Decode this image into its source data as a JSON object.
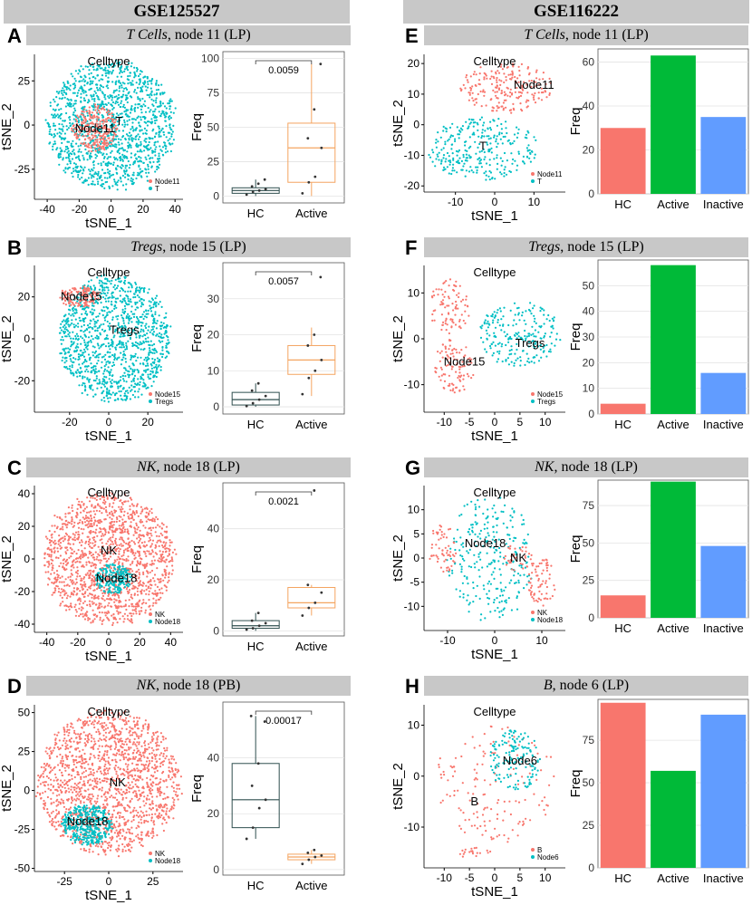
{
  "titles": {
    "left": "GSE125527",
    "right": "GSE116222"
  },
  "colors": {
    "pink": "#f8766d",
    "cyan": "#00bfc4",
    "hc": "#f8766d",
    "active": "#00ba38",
    "inactive": "#619cff",
    "box_hc": "#2f4f4f",
    "box_active": "#f4a460",
    "banner": "#c8c8c8",
    "grid": "#e3e3e3"
  },
  "panels": [
    {
      "letter": "A",
      "banner_italic": "T Cells",
      "banner_rest": ", node 11 (LP)"
    },
    {
      "letter": "B",
      "banner_italic": "Tregs",
      "banner_rest": ", node 15 (LP)"
    },
    {
      "letter": "C",
      "banner_italic": "NK",
      "banner_rest": ", node 18 (LP)"
    },
    {
      "letter": "D",
      "banner_italic": "NK",
      "banner_rest": ", node 18 (PB)"
    },
    {
      "letter": "E",
      "banner_italic": "T Cells",
      "banner_rest": ", node 11 (LP)"
    },
    {
      "letter": "F",
      "banner_italic": "Tregs",
      "banner_rest": ", node 15 (LP)"
    },
    {
      "letter": "G",
      "banner_italic": "NK",
      "banner_rest": ", node 18 (LP)"
    },
    {
      "letter": "H",
      "banner_italic": "B",
      "banner_rest": ", node 6 (LP)"
    }
  ],
  "chart_data": [
    {
      "id": "A-tsne",
      "type": "scatter",
      "title": "Celltype",
      "xlabel": "tSNE_1",
      "ylabel": "tSNE_2",
      "xlim": [
        -48,
        45
      ],
      "ylim": [
        -42,
        40
      ],
      "xticks": [
        -40,
        -20,
        0,
        20,
        40
      ],
      "yticks": [
        -25,
        0,
        25
      ],
      "labels": [
        {
          "text": "Node11",
          "x": -10,
          "y": -2
        },
        {
          "text": "T",
          "x": 5,
          "y": 2
        }
      ],
      "legend": [
        "Node11",
        "T"
      ],
      "clusters": [
        {
          "group": "cyan",
          "cx": 0,
          "cy": 0,
          "rx": 40,
          "ry": 36,
          "n": 1400,
          "seed": 11
        },
        {
          "group": "pink",
          "cx": -10,
          "cy": -2,
          "rx": 14,
          "ry": 13,
          "n": 260,
          "seed": 12
        }
      ]
    },
    {
      "id": "A-box",
      "type": "box",
      "ylabel": "Freq",
      "categories": [
        "HC",
        "Active"
      ],
      "ylim": [
        -5,
        105
      ],
      "yticks": [
        0,
        25,
        50,
        75,
        100
      ],
      "pvalue": "0.0059",
      "boxes": [
        {
          "q1": 2,
          "median": 4,
          "q3": 6,
          "lo": 0,
          "hi": 12,
          "points": [
            1,
            3,
            4,
            5,
            7,
            9,
            12
          ]
        },
        {
          "q1": 10,
          "median": 35,
          "q3": 53,
          "lo": 0,
          "hi": 96,
          "points": [
            2,
            10,
            14,
            35,
            42,
            63,
            96
          ]
        }
      ]
    },
    {
      "id": "B-tsne",
      "type": "scatter",
      "title": "Celltype",
      "xlabel": "tSNE_1",
      "ylabel": "tSNE_2",
      "xlim": [
        -38,
        38
      ],
      "ylim": [
        -35,
        35
      ],
      "xticks": [
        -20,
        0,
        20
      ],
      "yticks": [
        -20,
        0,
        20
      ],
      "labels": [
        {
          "text": "Node15",
          "x": -14,
          "y": 20
        },
        {
          "text": "Tregs",
          "x": 8,
          "y": 4
        }
      ],
      "legend": [
        "Node15",
        "Tregs"
      ],
      "clusters": [
        {
          "group": "cyan",
          "cx": 3,
          "cy": 0,
          "rx": 28,
          "ry": 30,
          "n": 1200,
          "seed": 21
        },
        {
          "group": "pink",
          "cx": -15,
          "cy": 20,
          "rx": 10,
          "ry": 5,
          "n": 120,
          "seed": 22
        }
      ]
    },
    {
      "id": "B-box",
      "type": "box",
      "ylabel": "Freq",
      "categories": [
        "HC",
        "Active"
      ],
      "ylim": [
        -2,
        40
      ],
      "yticks": [
        0,
        10,
        20,
        30
      ],
      "pvalue": "0.0057",
      "boxes": [
        {
          "q1": 0.5,
          "median": 2,
          "q3": 4,
          "lo": 0,
          "hi": 6.5,
          "points": [
            0.2,
            1,
            2,
            3,
            4.5,
            6.5
          ]
        },
        {
          "q1": 9,
          "median": 13,
          "q3": 17,
          "lo": 3,
          "hi": 22,
          "points": [
            3.5,
            8,
            10,
            13,
            17,
            20,
            36
          ]
        }
      ]
    },
    {
      "id": "C-tsne",
      "type": "scatter",
      "title": "Celltype",
      "xlabel": "tSNE_1",
      "ylabel": "tSNE_2",
      "xlim": [
        -48,
        48
      ],
      "ylim": [
        -45,
        45
      ],
      "xticks": [
        -40,
        -20,
        0,
        20,
        40
      ],
      "yticks": [
        -40,
        -20,
        0,
        20,
        40
      ],
      "labels": [
        {
          "text": "NK",
          "x": 0,
          "y": 5
        },
        {
          "text": "Node18",
          "x": 5,
          "y": -12
        }
      ],
      "legend": [
        "NK",
        "Node18"
      ],
      "clusters": [
        {
          "group": "pink",
          "cx": 0,
          "cy": 0,
          "rx": 42,
          "ry": 40,
          "n": 1500,
          "seed": 31
        },
        {
          "group": "cyan",
          "cx": 3,
          "cy": -12,
          "rx": 12,
          "ry": 9,
          "n": 200,
          "seed": 32
        }
      ]
    },
    {
      "id": "C-box",
      "type": "box",
      "ylabel": "Freq",
      "categories": [
        "HC",
        "Active"
      ],
      "ylim": [
        -2,
        58
      ],
      "yticks": [
        0,
        20,
        40
      ],
      "pvalue": "0.0021",
      "boxes": [
        {
          "q1": 1,
          "median": 2,
          "q3": 4,
          "lo": 0,
          "hi": 7,
          "points": [
            0.5,
            1,
            2,
            3,
            4,
            7
          ]
        },
        {
          "q1": 9,
          "median": 11,
          "q3": 17,
          "lo": 6,
          "hi": 18,
          "points": [
            6,
            9,
            11,
            15,
            18,
            55
          ]
        }
      ]
    },
    {
      "id": "D-tsne",
      "type": "scatter",
      "title": "Celltype",
      "xlabel": "tSNE_1",
      "ylabel": "tSNE_2",
      "xlim": [
        -42,
        42
      ],
      "ylim": [
        -52,
        55
      ],
      "xticks": [
        -25,
        0,
        25
      ],
      "yticks": [
        -50,
        -25,
        0,
        25,
        50
      ],
      "labels": [
        {
          "text": "NK",
          "x": 5,
          "y": 5
        },
        {
          "text": "Node18",
          "x": -12,
          "y": -20
        }
      ],
      "legend": [
        "NK",
        "Node18"
      ],
      "clusters": [
        {
          "group": "pink",
          "cx": 0,
          "cy": 5,
          "rx": 40,
          "ry": 46,
          "n": 1600,
          "seed": 41
        },
        {
          "group": "cyan",
          "cx": -12,
          "cy": -22,
          "rx": 14,
          "ry": 13,
          "n": 380,
          "seed": 42
        }
      ]
    },
    {
      "id": "D-box",
      "type": "box",
      "ylabel": "Freq",
      "categories": [
        "HC",
        "Active"
      ],
      "ylim": [
        -2,
        60
      ],
      "yticks": [
        0,
        20,
        40
      ],
      "pvalue": "0.00017",
      "boxes": [
        {
          "q1": 15,
          "median": 25,
          "q3": 38,
          "lo": 11,
          "hi": 55,
          "points": [
            11,
            15,
            22,
            25,
            30,
            38,
            53,
            55
          ]
        },
        {
          "q1": 3.5,
          "median": 4.5,
          "q3": 5.5,
          "lo": 2,
          "hi": 7,
          "points": [
            2,
            3.5,
            4.5,
            5,
            6,
            7
          ]
        }
      ]
    },
    {
      "id": "E-tsne",
      "type": "scatter",
      "title": "Celltype",
      "xlabel": "tSNE_1",
      "ylabel": "tSNE_2",
      "xlim": [
        -18,
        18
      ],
      "ylim": [
        -22,
        23
      ],
      "xticks": [
        -10,
        0,
        10
      ],
      "yticks": [
        -20,
        -10,
        0,
        10,
        20
      ],
      "labels": [
        {
          "text": "Node11",
          "x": 10,
          "y": 13
        },
        {
          "text": "T",
          "x": -3,
          "y": -7
        }
      ],
      "legend": [
        "Node11",
        "T"
      ],
      "clusters": [
        {
          "group": "pink",
          "cx": 3,
          "cy": 12,
          "rx": 12,
          "ry": 8,
          "n": 210,
          "seed": 51
        },
        {
          "group": "cyan",
          "cx": -3,
          "cy": -8,
          "rx": 14,
          "ry": 10,
          "n": 290,
          "seed": 52
        }
      ]
    },
    {
      "id": "E-bar",
      "type": "bar",
      "ylabel": "Freq",
      "categories": [
        "HC",
        "Active",
        "Inactive"
      ],
      "values": [
        30,
        63,
        35
      ],
      "ylim": [
        0,
        66
      ],
      "yticks": [
        0,
        20,
        40,
        60
      ]
    },
    {
      "id": "F-tsne",
      "type": "scatter",
      "title": "Celltype",
      "xlabel": "tSNE_1",
      "ylabel": "tSNE_2",
      "xlim": [
        -14,
        14
      ],
      "ylim": [
        -16,
        16
      ],
      "xticks": [
        -10,
        -5,
        0,
        5,
        10
      ],
      "yticks": [
        -10,
        0,
        10
      ],
      "labels": [
        {
          "text": "Node15",
          "x": -6,
          "y": -5
        },
        {
          "text": "Tregs",
          "x": 7,
          "y": -1
        }
      ],
      "legend": [
        "Node15",
        "Tregs"
      ],
      "clusters": [
        {
          "group": "pink",
          "cx": -9,
          "cy": 7,
          "rx": 4,
          "ry": 6,
          "n": 90,
          "seed": 61
        },
        {
          "group": "pink",
          "cx": -8,
          "cy": -6,
          "rx": 4,
          "ry": 6,
          "n": 100,
          "seed": 62
        },
        {
          "group": "cyan",
          "cx": 5,
          "cy": 1,
          "rx": 8,
          "ry": 7,
          "n": 220,
          "seed": 63
        }
      ]
    },
    {
      "id": "F-bar",
      "type": "bar",
      "ylabel": "Freq",
      "categories": [
        "HC",
        "Active",
        "Inactive"
      ],
      "values": [
        4,
        58,
        16
      ],
      "ylim": [
        0,
        60
      ],
      "yticks": [
        0,
        10,
        20,
        30,
        40,
        50
      ]
    },
    {
      "id": "G-tsne",
      "type": "scatter",
      "title": "Celltype",
      "xlabel": "tSNE_1",
      "ylabel": "tSNE_2",
      "xlim": [
        -15,
        15
      ],
      "ylim": [
        -15,
        15
      ],
      "xticks": [
        -10,
        0,
        10
      ],
      "yticks": [
        -10,
        -5,
        0,
        5,
        10
      ],
      "labels": [
        {
          "text": "Node18",
          "x": -2,
          "y": 3
        },
        {
          "text": "NK",
          "x": 5,
          "y": 0
        }
      ],
      "legend": [
        "NK",
        "Node18"
      ],
      "clusters": [
        {
          "group": "cyan",
          "cx": -1,
          "cy": 0,
          "rx": 9,
          "ry": 13,
          "n": 270,
          "seed": 71
        },
        {
          "group": "pink",
          "cx": -11,
          "cy": 2,
          "rx": 3,
          "ry": 5,
          "n": 60,
          "seed": 72
        },
        {
          "group": "pink",
          "cx": 10,
          "cy": -5,
          "rx": 3,
          "ry": 5,
          "n": 70,
          "seed": 73
        },
        {
          "group": "pink",
          "cx": 5,
          "cy": 0,
          "rx": 3,
          "ry": 3,
          "n": 35,
          "seed": 74
        }
      ]
    },
    {
      "id": "G-bar",
      "type": "bar",
      "ylabel": "Freq",
      "categories": [
        "HC",
        "Active",
        "Inactive"
      ],
      "values": [
        15,
        91,
        48
      ],
      "ylim": [
        0,
        92
      ],
      "yticks": [
        0,
        25,
        50,
        75
      ]
    },
    {
      "id": "H-tsne",
      "type": "scatter",
      "title": "Celltype",
      "xlabel": "tSNE_1",
      "ylabel": "tSNE_2",
      "xlim": [
        -14,
        14
      ],
      "ylim": [
        -18,
        14
      ],
      "xticks": [
        -10,
        -5,
        0,
        5,
        10
      ],
      "yticks": [
        -10,
        0,
        10
      ],
      "labels": [
        {
          "text": "Node6",
          "x": 5,
          "y": 3
        },
        {
          "text": "B",
          "x": -4,
          "y": -5
        }
      ],
      "legend": [
        "B",
        "Node6"
      ],
      "clusters": [
        {
          "group": "pink",
          "cx": 0,
          "cy": -2,
          "rx": 12,
          "ry": 12,
          "n": 150,
          "seed": 81
        },
        {
          "group": "cyan",
          "cx": 4,
          "cy": 3,
          "rx": 5,
          "ry": 6,
          "n": 150,
          "seed": 82
        },
        {
          "group": "pink",
          "cx": -4,
          "cy": -15,
          "rx": 4,
          "ry": 1,
          "n": 20,
          "seed": 83
        }
      ]
    },
    {
      "id": "H-bar",
      "type": "bar",
      "ylabel": "Freq",
      "categories": [
        "HC",
        "Active",
        "Inactive"
      ],
      "values": [
        97,
        57,
        90
      ],
      "ylim": [
        0,
        99
      ],
      "yticks": [
        0,
        25,
        50,
        75
      ]
    }
  ]
}
